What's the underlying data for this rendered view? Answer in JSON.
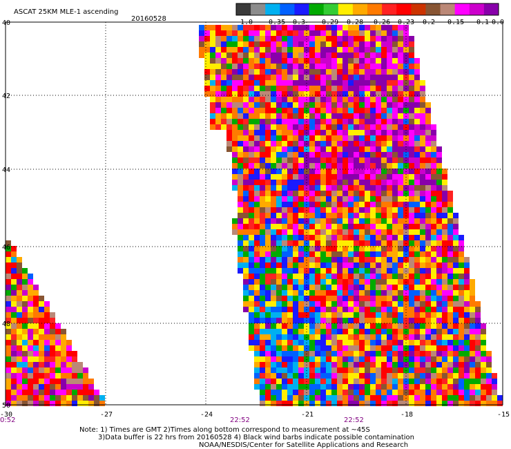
{
  "header": {
    "title": "ASCAT 25KM MLE-1 ascending",
    "date": "20160528"
  },
  "colorbar": {
    "colors": [
      "#3a3a3a",
      "#8c8c8c",
      "#00b0f0",
      "#0060ff",
      "#1a1aff",
      "#00aa00",
      "#33cc33",
      "#ffee00",
      "#ffaa00",
      "#ff7a00",
      "#ff2222",
      "#ff0000",
      "#cc3300",
      "#885533",
      "#bb8877",
      "#ff00ff",
      "#cc00cc",
      "#8800aa"
    ],
    "labels": [
      "-1.0",
      "-0.35",
      "-0.3",
      "-0.29",
      "-0.28",
      "-0.26",
      "-0.23",
      "-0.2",
      "-0.15",
      "-0.1",
      "0.0"
    ]
  },
  "lat_labels": [
    "40",
    "42",
    "44",
    "46",
    "48",
    "50"
  ],
  "lon_labels": [
    "-30",
    "-27",
    "-24",
    "-21",
    "-18",
    "-15"
  ],
  "time_labels": [
    {
      "text": "0:52"
    },
    {
      "text": "22:52"
    },
    {
      "text": "22:52"
    }
  ],
  "notes": {
    "line1": "Note: 1) Times are GMT 2)Times along bottom correspond to measurement at ~45S",
    "line2": "3)Data buffer is 22 hrs from 20160528 4) Black wind barbs indicate possible contamination",
    "line3": "NOAA/NESDIS/Center for Satellite Applications and Research"
  },
  "swath": {
    "palette": [
      "#8800aa",
      "#cc00cc",
      "#ff00ff",
      "#885533",
      "#bb8877",
      "#ff0000",
      "#ff2222",
      "#ff7a00",
      "#ffaa00",
      "#ffee00",
      "#00aa00",
      "#1a1aff",
      "#0060ff",
      "#00b0f0"
    ]
  }
}
